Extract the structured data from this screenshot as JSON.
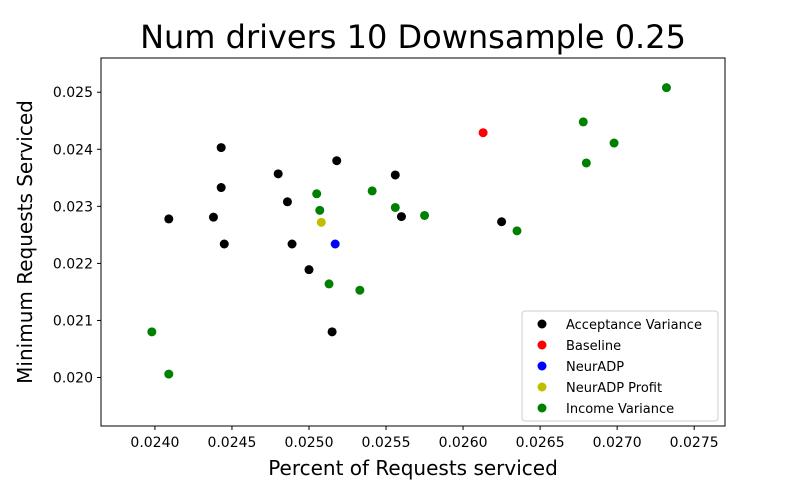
{
  "chart_data": {
    "type": "scatter",
    "title": "Num drivers 10 Downsample 0.25",
    "xlabel": "Percent of Requests serviced",
    "ylabel": "Minimum Requests Serviced",
    "xlim": [
      0.02365,
      0.0277
    ],
    "ylim": [
      0.01915,
      0.0256
    ],
    "xticks": [
      "0.0240",
      "0.0245",
      "0.0250",
      "0.0255",
      "0.0260",
      "0.0265",
      "0.0270",
      "0.0275"
    ],
    "xtick_values": [
      0.024,
      0.0245,
      0.025,
      0.0255,
      0.026,
      0.0265,
      0.027,
      0.0275
    ],
    "yticks": [
      "0.020",
      "0.021",
      "0.022",
      "0.023",
      "0.024",
      "0.025"
    ],
    "ytick_values": [
      0.02,
      0.021,
      0.022,
      0.023,
      0.024,
      0.025
    ],
    "grid": false,
    "legend_position": "lower-right",
    "series": [
      {
        "name": "Acceptance Variance",
        "color": "#000000",
        "points": [
          [
            0.02409,
            0.02278
          ],
          [
            0.02438,
            0.02281
          ],
          [
            0.02443,
            0.02403
          ],
          [
            0.02443,
            0.02333
          ],
          [
            0.02445,
            0.02234
          ],
          [
            0.0248,
            0.02357
          ],
          [
            0.02486,
            0.02308
          ],
          [
            0.02489,
            0.02234
          ],
          [
            0.025,
            0.02189
          ],
          [
            0.02515,
            0.0208
          ],
          [
            0.02518,
            0.0238
          ],
          [
            0.02556,
            0.02355
          ],
          [
            0.0256,
            0.02282
          ],
          [
            0.02625,
            0.02273
          ]
        ]
      },
      {
        "name": "Baseline",
        "color": "#ff0000",
        "points": [
          [
            0.02613,
            0.02429
          ]
        ]
      },
      {
        "name": "NeurADP",
        "color": "#0000ff",
        "points": [
          [
            0.02517,
            0.02234
          ]
        ]
      },
      {
        "name": "NeurADP Profit",
        "color": "#bfbf00",
        "points": [
          [
            0.02508,
            0.02272
          ]
        ]
      },
      {
        "name": "Income Variance",
        "color": "#008000",
        "points": [
          [
            0.02398,
            0.0208
          ],
          [
            0.02409,
            0.02006
          ],
          [
            0.02505,
            0.02322
          ],
          [
            0.02507,
            0.02293
          ],
          [
            0.02513,
            0.02164
          ],
          [
            0.02533,
            0.02153
          ],
          [
            0.02541,
            0.02327
          ],
          [
            0.02556,
            0.02298
          ],
          [
            0.02575,
            0.02284
          ],
          [
            0.02635,
            0.02257
          ],
          [
            0.02678,
            0.02448
          ],
          [
            0.0268,
            0.02376
          ],
          [
            0.02698,
            0.02411
          ],
          [
            0.02732,
            0.02508
          ]
        ]
      }
    ]
  }
}
